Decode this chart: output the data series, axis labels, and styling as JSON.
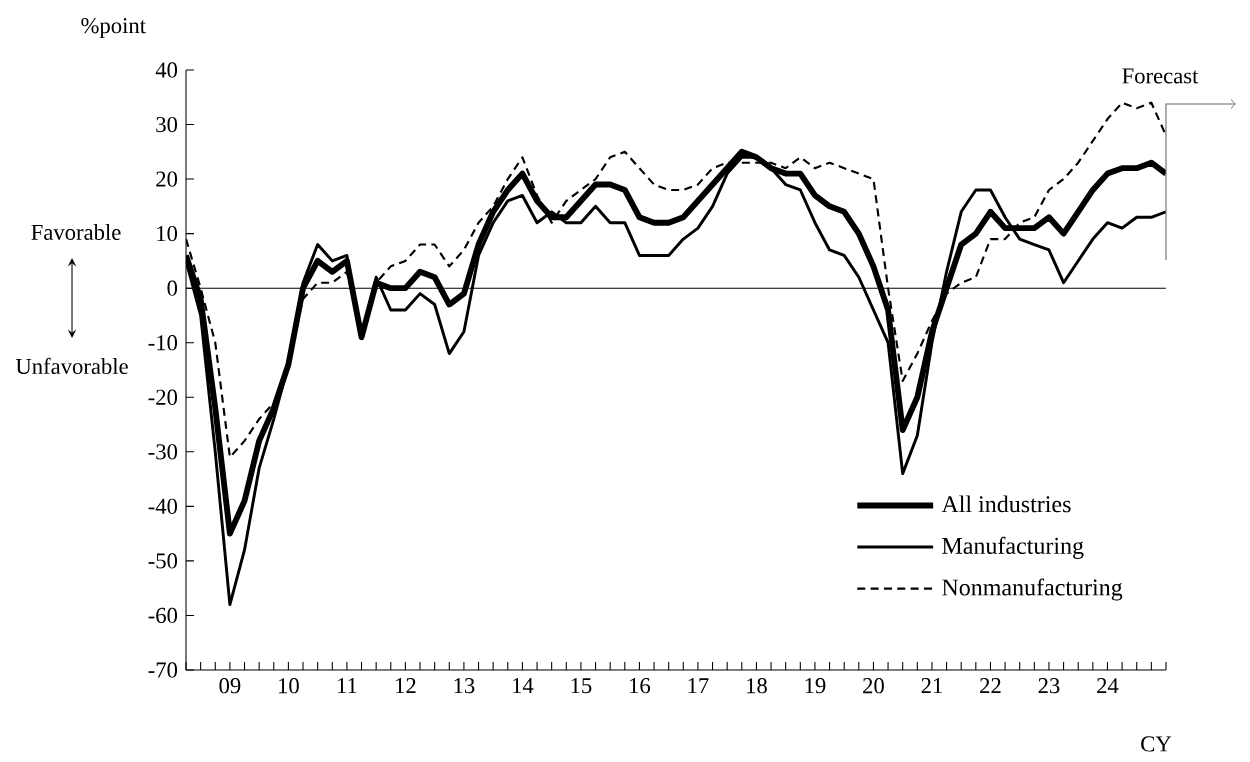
{
  "chart_data": {
    "type": "line",
    "ylabel": "%point",
    "xlabel": "CY",
    "categories": [
      null,
      null,
      null,
      "09",
      null,
      null,
      null,
      "10",
      null,
      null,
      null,
      "11",
      null,
      null,
      null,
      "12",
      null,
      null,
      null,
      "13",
      null,
      null,
      null,
      "14",
      null,
      null,
      null,
      "15",
      null,
      null,
      null,
      "16",
      null,
      null,
      null,
      "17",
      null,
      null,
      null,
      "18",
      null,
      null,
      null,
      "19",
      null,
      null,
      null,
      "20",
      null,
      null,
      null,
      "21",
      null,
      null,
      null,
      "22",
      null,
      null,
      null,
      "23",
      null,
      null,
      null,
      "24",
      null,
      null,
      null,
      null
    ],
    "series": [
      {
        "name": "All industries",
        "color": "#000000",
        "line_style": "solid",
        "values": [
          6,
          -2,
          -22,
          -45,
          -39,
          -28,
          -22,
          -14,
          0,
          5,
          3,
          5,
          -9,
          1,
          0,
          0,
          3,
          2,
          -3,
          -1,
          8,
          14,
          18,
          21,
          16,
          13,
          13,
          16,
          19,
          19,
          18,
          13,
          12,
          12,
          13,
          16,
          19,
          22,
          25,
          24,
          22,
          21,
          21,
          17,
          15,
          14,
          10,
          4,
          -4,
          -26,
          -20,
          -8,
          0,
          8,
          10,
          14,
          11,
          11,
          11,
          13,
          10,
          14,
          18,
          21,
          22,
          22,
          23,
          21
        ]
      },
      {
        "name": "Manufacturing",
        "color": "#000000",
        "line_style": "solid",
        "values": [
          5,
          -5,
          -30,
          -58,
          -48,
          -33,
          -24,
          -14,
          1,
          8,
          5,
          6,
          -9,
          2,
          -4,
          -4,
          -1,
          -3,
          -12,
          -8,
          6,
          12,
          16,
          17,
          12,
          14,
          12,
          12,
          15,
          12,
          12,
          6,
          6,
          6,
          9,
          11,
          15,
          21,
          24,
          24,
          22,
          19,
          18,
          12,
          7,
          6,
          2,
          -4,
          -10,
          -34,
          -27,
          -10,
          3,
          14,
          18,
          18,
          13,
          9,
          8,
          7,
          1,
          5,
          9,
          12,
          11,
          13,
          13,
          14
        ]
      },
      {
        "name": "Nonmanufacturing",
        "color": "#000000",
        "line_style": "dashed",
        "values": [
          9,
          0,
          -10,
          -31,
          -28,
          -24,
          -21,
          -14,
          -2,
          1,
          1,
          3,
          -8,
          1,
          4,
          5,
          8,
          8,
          4,
          7,
          12,
          15,
          20,
          24,
          17,
          12,
          16,
          18,
          20,
          24,
          25,
          22,
          19,
          18,
          18,
          19,
          22,
          23,
          23,
          23,
          23,
          22,
          24,
          22,
          23,
          22,
          21,
          20,
          0,
          -17,
          -12,
          -6,
          -1,
          1,
          2,
          9,
          9,
          12,
          13,
          18,
          20,
          23,
          27,
          31,
          34,
          33,
          34,
          28
        ]
      }
    ],
    "ylim": [
      -70,
      40
    ],
    "yticks": [
      -70,
      -60,
      -50,
      -40,
      -30,
      -20,
      -10,
      0,
      10,
      20,
      30,
      40
    ],
    "ref_lines": [
      {
        "axis": "y",
        "value": 0,
        "color": "#000000"
      }
    ],
    "annotations": [
      "Favorable",
      "Unfavorable",
      "Forecast"
    ],
    "legend": "bottom right",
    "marker": "none",
    "grid": false
  }
}
